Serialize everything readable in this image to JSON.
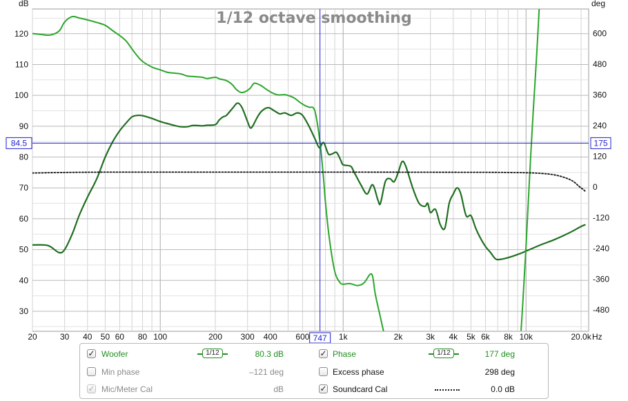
{
  "chart_data": {
    "type": "line",
    "title": "1/12 octave smoothing",
    "left_axis": {
      "label": "dB",
      "ylim": [
        23.5,
        128
      ],
      "ticks": [
        30,
        40,
        50,
        60,
        70,
        80,
        90,
        100,
        110,
        120
      ]
    },
    "right_axis": {
      "label": "deg",
      "ylim": [
        -564,
        696
      ],
      "ticks": [
        -480,
        -360,
        -240,
        -120,
        0,
        120,
        240,
        360,
        480,
        600
      ]
    },
    "x_axis": {
      "label": "Hz",
      "scale": "log",
      "xlim": [
        20,
        22000
      ],
      "ticks": [
        {
          "v": 20,
          "t": "20"
        },
        {
          "v": 30,
          "t": "30"
        },
        {
          "v": 40,
          "t": "40"
        },
        {
          "v": 50,
          "t": "50"
        },
        {
          "v": 60,
          "t": "60"
        },
        {
          "v": 80,
          "t": "80"
        },
        {
          "v": 100,
          "t": "100"
        },
        {
          "v": 200,
          "t": "200"
        },
        {
          "v": 300,
          "t": "300"
        },
        {
          "v": 400,
          "t": "400"
        },
        {
          "v": 600,
          "t": "600"
        },
        {
          "v": 1000,
          "t": "1k"
        },
        {
          "v": 2000,
          "t": "2k"
        },
        {
          "v": 3000,
          "t": "3k"
        },
        {
          "v": 4000,
          "t": "4k"
        },
        {
          "v": 5000,
          "t": "5k"
        },
        {
          "v": 6000,
          "t": "6k"
        },
        {
          "v": 8000,
          "t": "8k"
        },
        {
          "v": 10000,
          "t": "10k"
        },
        {
          "v": 20000,
          "t": "20.0k"
        }
      ]
    },
    "cursor": {
      "freq": 747,
      "freq_label": "747",
      "db": 84.5,
      "db_label": "84.5",
      "deg_label": "175"
    },
    "series": [
      {
        "name": "Woofer",
        "axis": "left",
        "color": "#1f6e1f",
        "width": 2.2,
        "points": [
          [
            20,
            51.5
          ],
          [
            23,
            51.5
          ],
          [
            25,
            51
          ],
          [
            28,
            49
          ],
          [
            30,
            50
          ],
          [
            33,
            55
          ],
          [
            36,
            61
          ],
          [
            40,
            67
          ],
          [
            45,
            73
          ],
          [
            50,
            80
          ],
          [
            55,
            85
          ],
          [
            60,
            88.5
          ],
          [
            65,
            91
          ],
          [
            70,
            93
          ],
          [
            75,
            93.5
          ],
          [
            80,
            93.4
          ],
          [
            90,
            92.5
          ],
          [
            100,
            91.5
          ],
          [
            110,
            90.8
          ],
          [
            120,
            90.2
          ],
          [
            130,
            89.8
          ],
          [
            140,
            89.8
          ],
          [
            150,
            90.2
          ],
          [
            160,
            90.2
          ],
          [
            170,
            90.1
          ],
          [
            180,
            90.3
          ],
          [
            200,
            90.5
          ],
          [
            210,
            92
          ],
          [
            220,
            93
          ],
          [
            230,
            93.5
          ],
          [
            250,
            96
          ],
          [
            265,
            97.5
          ],
          [
            280,
            96
          ],
          [
            300,
            91.5
          ],
          [
            310,
            89.5
          ],
          [
            320,
            90
          ],
          [
            340,
            93
          ],
          [
            360,
            95
          ],
          [
            390,
            96
          ],
          [
            420,
            95
          ],
          [
            450,
            94
          ],
          [
            480,
            94.3
          ],
          [
            520,
            93.5
          ],
          [
            560,
            94.3
          ],
          [
            600,
            93.5
          ],
          [
            650,
            90
          ],
          [
            700,
            86
          ],
          [
            740,
            83
          ],
          [
            770,
            84.5
          ],
          [
            790,
            84.3
          ],
          [
            830,
            81
          ],
          [
            870,
            81
          ],
          [
            920,
            81.5
          ],
          [
            970,
            79
          ],
          [
            1000,
            77.5
          ],
          [
            1100,
            77
          ],
          [
            1150,
            75
          ],
          [
            1250,
            71
          ],
          [
            1350,
            68
          ],
          [
            1450,
            71
          ],
          [
            1550,
            66
          ],
          [
            1600,
            65
          ],
          [
            1700,
            72
          ],
          [
            1800,
            73
          ],
          [
            1900,
            72
          ],
          [
            2000,
            75
          ],
          [
            2100,
            78.5
          ],
          [
            2200,
            77
          ],
          [
            2400,
            70
          ],
          [
            2600,
            65
          ],
          [
            2800,
            64
          ],
          [
            2900,
            65
          ],
          [
            3000,
            62
          ],
          [
            3200,
            63
          ],
          [
            3400,
            58
          ],
          [
            3600,
            57
          ],
          [
            3800,
            65
          ],
          [
            4000,
            68
          ],
          [
            4200,
            70
          ],
          [
            4400,
            68
          ],
          [
            4700,
            61
          ],
          [
            5000,
            61
          ],
          [
            5300,
            57
          ],
          [
            5600,
            54
          ],
          [
            6000,
            51
          ],
          [
            6400,
            49
          ],
          [
            6800,
            47
          ],
          [
            7200,
            46.8
          ],
          [
            8000,
            47.4
          ],
          [
            9000,
            48.4
          ],
          [
            10000,
            49.5
          ],
          [
            12000,
            51.5
          ],
          [
            14000,
            53
          ],
          [
            16000,
            54.5
          ],
          [
            18000,
            56
          ],
          [
            20000,
            57.5
          ],
          [
            21000,
            58
          ]
        ]
      },
      {
        "name": "Phase",
        "axis": "right",
        "color": "#2aa52a",
        "width": 2.0,
        "points": [
          [
            20,
            600
          ],
          [
            22,
            597
          ],
          [
            25,
            594
          ],
          [
            28,
            610
          ],
          [
            30,
            645
          ],
          [
            33,
            666
          ],
          [
            36,
            661
          ],
          [
            40,
            653
          ],
          [
            45,
            643
          ],
          [
            50,
            632
          ],
          [
            55,
            611
          ],
          [
            60,
            592
          ],
          [
            65,
            571
          ],
          [
            70,
            540
          ],
          [
            75,
            512
          ],
          [
            80,
            491
          ],
          [
            90,
            469
          ],
          [
            100,
            458
          ],
          [
            110,
            448
          ],
          [
            120,
            445
          ],
          [
            130,
            442
          ],
          [
            140,
            434
          ],
          [
            150,
            432
          ],
          [
            170,
            429
          ],
          [
            180,
            424
          ],
          [
            200,
            429
          ],
          [
            210,
            423
          ],
          [
            220,
            420
          ],
          [
            230,
            416
          ],
          [
            240,
            408
          ],
          [
            250,
            397
          ],
          [
            260,
            382
          ],
          [
            275,
            370
          ],
          [
            290,
            372
          ],
          [
            310,
            386
          ],
          [
            325,
            405
          ],
          [
            340,
            403
          ],
          [
            360,
            394
          ],
          [
            380,
            382
          ],
          [
            410,
            368
          ],
          [
            440,
            360
          ],
          [
            480,
            361
          ],
          [
            500,
            358
          ],
          [
            540,
            348
          ],
          [
            580,
            331
          ],
          [
            620,
            318
          ],
          [
            650,
            312
          ],
          [
            700,
            298
          ],
          [
            747,
            175
          ],
          [
            780,
            40
          ],
          [
            800,
            -60
          ],
          [
            840,
            -200
          ],
          [
            900,
            -330
          ],
          [
            960,
            -373
          ],
          [
            1000,
            -380
          ],
          [
            1050,
            -378
          ],
          [
            1100,
            -378
          ],
          [
            1200,
            -385
          ],
          [
            1300,
            -375
          ],
          [
            1400,
            -342
          ],
          [
            1450,
            -350
          ],
          [
            1500,
            -420
          ],
          [
            1600,
            -510
          ],
          [
            1660,
            -562
          ]
        ]
      },
      {
        "name": "Phase",
        "axis": "right",
        "color": "#2aa52a",
        "width": 2.0,
        "points": [
          [
            9400,
            -560
          ],
          [
            9700,
            -400
          ],
          [
            10000,
            -230
          ],
          [
            10300,
            -50
          ],
          [
            10600,
            120
          ],
          [
            11000,
            320
          ],
          [
            11400,
            500
          ],
          [
            11800,
            696
          ]
        ]
      },
      {
        "name": "Soundcard Cal",
        "axis": "left",
        "color": "#111111",
        "width": 1.8,
        "dash": "2,2.5",
        "points": [
          [
            20,
            74.8
          ],
          [
            30,
            75
          ],
          [
            50,
            75.1
          ],
          [
            100,
            75.1
          ],
          [
            1000,
            75.1
          ],
          [
            5000,
            75.05
          ],
          [
            8000,
            75
          ],
          [
            10000,
            74.9
          ],
          [
            12000,
            74.7
          ],
          [
            14000,
            74.3
          ],
          [
            16000,
            73.5
          ],
          [
            18000,
            72.2
          ],
          [
            19500,
            70.5
          ],
          [
            20500,
            69.5
          ],
          [
            21000,
            69
          ]
        ]
      }
    ]
  },
  "legend": {
    "row1": {
      "left": {
        "checked": "✓",
        "label": "Woofer",
        "smoothing_num": "1",
        "smoothing_den": "12",
        "value": "80.3 dB"
      },
      "right": {
        "checked": "✓",
        "label": "Phase",
        "smoothing_num": "1",
        "smoothing_den": "12",
        "value": "177 deg"
      }
    },
    "row2": {
      "left": {
        "label": "Min phase",
        "value": "–121 deg"
      },
      "right": {
        "label": "Excess phase",
        "value": "298 deg"
      }
    },
    "row3": {
      "left": {
        "checked": "✓",
        "label": "Mic/Meter Cal",
        "value": "dB"
      },
      "right": {
        "checked": "✓",
        "label": "Soundcard Cal",
        "value": "0.0 dB"
      }
    }
  }
}
